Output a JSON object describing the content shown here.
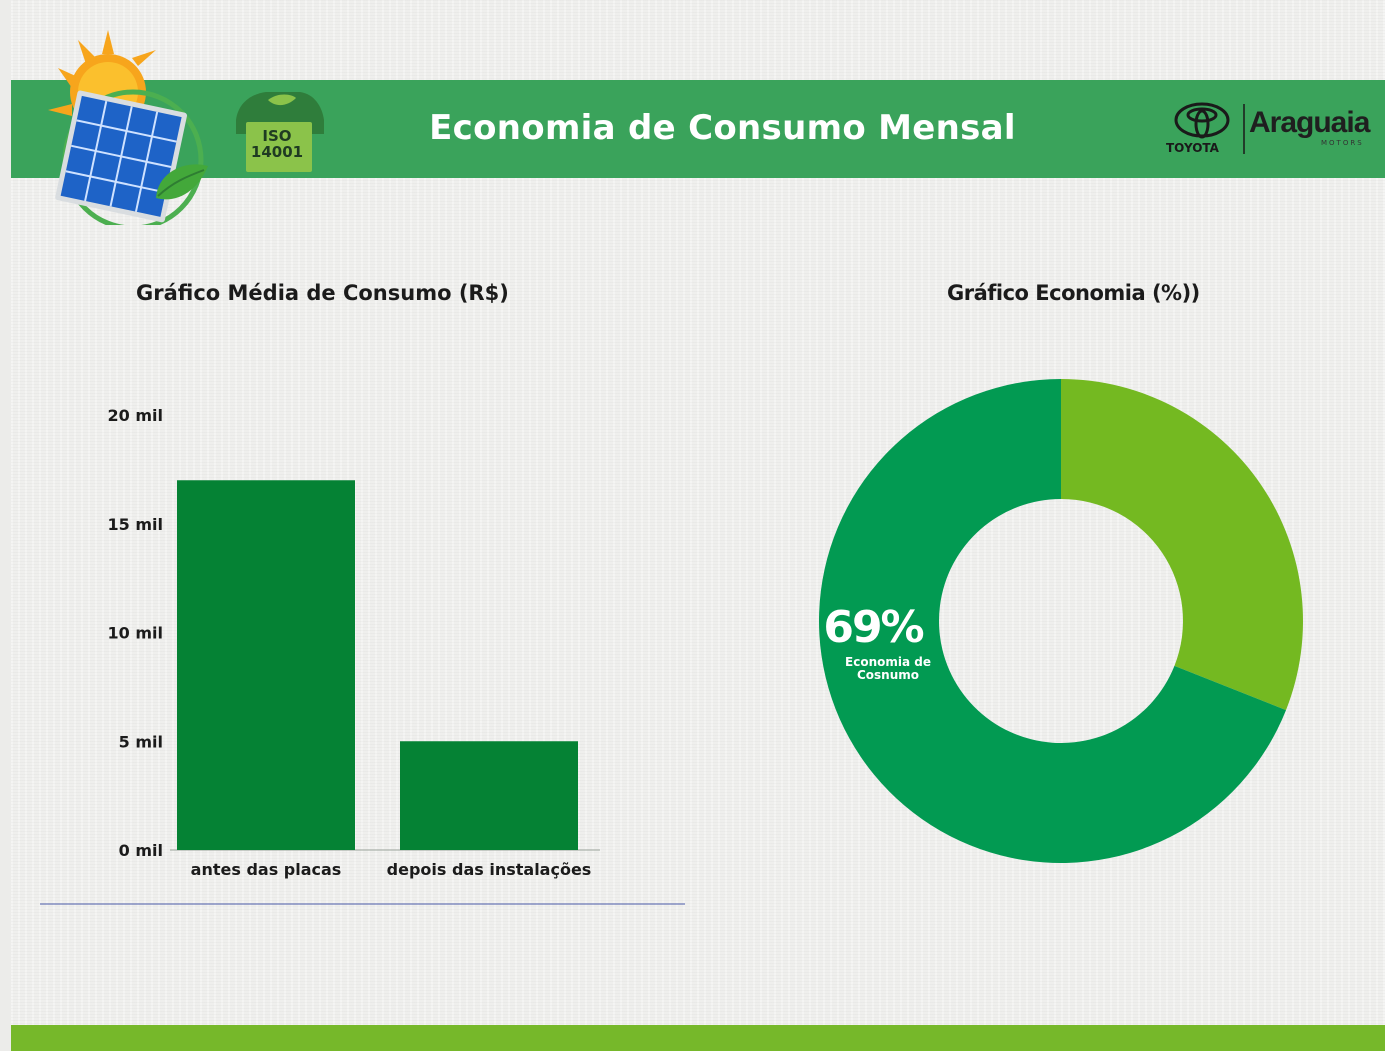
{
  "header": {
    "title": "Economia de Consumo Mensal",
    "iso_badge": "ISO 14001",
    "brand_toyota": "TOYOTA",
    "brand_araguaia": "Araguaia",
    "brand_motors": "MOTORS"
  },
  "colors": {
    "header_green": "#3aa35b",
    "footer_green": "#76b82a",
    "bar_green": "#058234",
    "donut_dark": "#029a52",
    "donut_light": "#74b921"
  },
  "chart_data": [
    {
      "type": "bar",
      "title": "Gráfico Média de Consumo (R$)",
      "categories": [
        "antes das placas",
        "depois das instalações"
      ],
      "values": [
        17000,
        5000
      ],
      "ylim": [
        0,
        20000
      ],
      "yticks": [
        0,
        5000,
        10000,
        15000,
        20000
      ],
      "ytick_labels": [
        "0 mil",
        "5 mil",
        "10 mil",
        "15 mil",
        "20 mil"
      ],
      "grid": false
    },
    {
      "type": "pie",
      "style": "donut",
      "title": "Gráfico Economia (%))",
      "slices": [
        {
          "value": 69,
          "color": "#029a52"
        },
        {
          "value": 31,
          "color": "#74b921"
        }
      ],
      "annotation": {
        "value_label": "69%",
        "text_line1": "Economia de",
        "text_line2": "Cosnumo"
      }
    }
  ]
}
